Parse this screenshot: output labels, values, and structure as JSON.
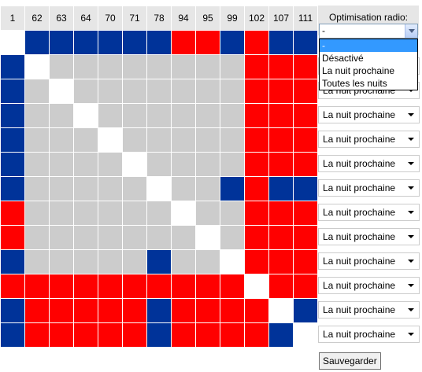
{
  "header": {
    "node_ids": [
      "1",
      "62",
      "63",
      "64",
      "70",
      "71",
      "78",
      "94",
      "95",
      "99",
      "102",
      "107",
      "111"
    ]
  },
  "colors": {
    "b": "#003399",
    "r": "#ff0000",
    "g": "#cccccc",
    "w": "#ffffff"
  },
  "matrix": [
    [
      "w",
      "b",
      "b",
      "b",
      "b",
      "b",
      "b",
      "r",
      "r",
      "b",
      "r",
      "b",
      "b"
    ],
    [
      "b",
      "w",
      "g",
      "g",
      "g",
      "g",
      "g",
      "g",
      "g",
      "g",
      "r",
      "r",
      "r"
    ],
    [
      "b",
      "g",
      "w",
      "g",
      "g",
      "g",
      "g",
      "g",
      "g",
      "g",
      "r",
      "r",
      "r"
    ],
    [
      "b",
      "g",
      "g",
      "w",
      "g",
      "g",
      "g",
      "g",
      "g",
      "g",
      "r",
      "r",
      "r"
    ],
    [
      "b",
      "g",
      "g",
      "g",
      "w",
      "g",
      "g",
      "g",
      "g",
      "g",
      "r",
      "r",
      "r"
    ],
    [
      "b",
      "g",
      "g",
      "g",
      "g",
      "w",
      "g",
      "g",
      "g",
      "g",
      "r",
      "r",
      "r"
    ],
    [
      "b",
      "g",
      "g",
      "g",
      "g",
      "g",
      "w",
      "g",
      "g",
      "b",
      "r",
      "b",
      "b"
    ],
    [
      "r",
      "g",
      "g",
      "g",
      "g",
      "g",
      "g",
      "w",
      "g",
      "g",
      "r",
      "r",
      "r"
    ],
    [
      "r",
      "g",
      "g",
      "g",
      "g",
      "g",
      "g",
      "g",
      "w",
      "g",
      "r",
      "r",
      "r"
    ],
    [
      "b",
      "g",
      "g",
      "g",
      "g",
      "g",
      "b",
      "g",
      "g",
      "w",
      "r",
      "r",
      "r"
    ],
    [
      "r",
      "r",
      "r",
      "r",
      "r",
      "r",
      "r",
      "r",
      "r",
      "r",
      "w",
      "r",
      "r"
    ],
    [
      "b",
      "r",
      "r",
      "r",
      "r",
      "r",
      "b",
      "r",
      "r",
      "r",
      "r",
      "w",
      "b"
    ],
    [
      "b",
      "r",
      "r",
      "r",
      "r",
      "r",
      "b",
      "r",
      "r",
      "r",
      "r",
      "b",
      "w"
    ]
  ],
  "side": {
    "title": "Optimisation radio:",
    "open_select_value": "-",
    "dropdown_options": [
      "-",
      "Désactivé",
      "La nuit prochaine",
      "Toutes les nuits"
    ],
    "row_select_value": "La nuit prochaine",
    "save_label": "Sauvegarder"
  }
}
